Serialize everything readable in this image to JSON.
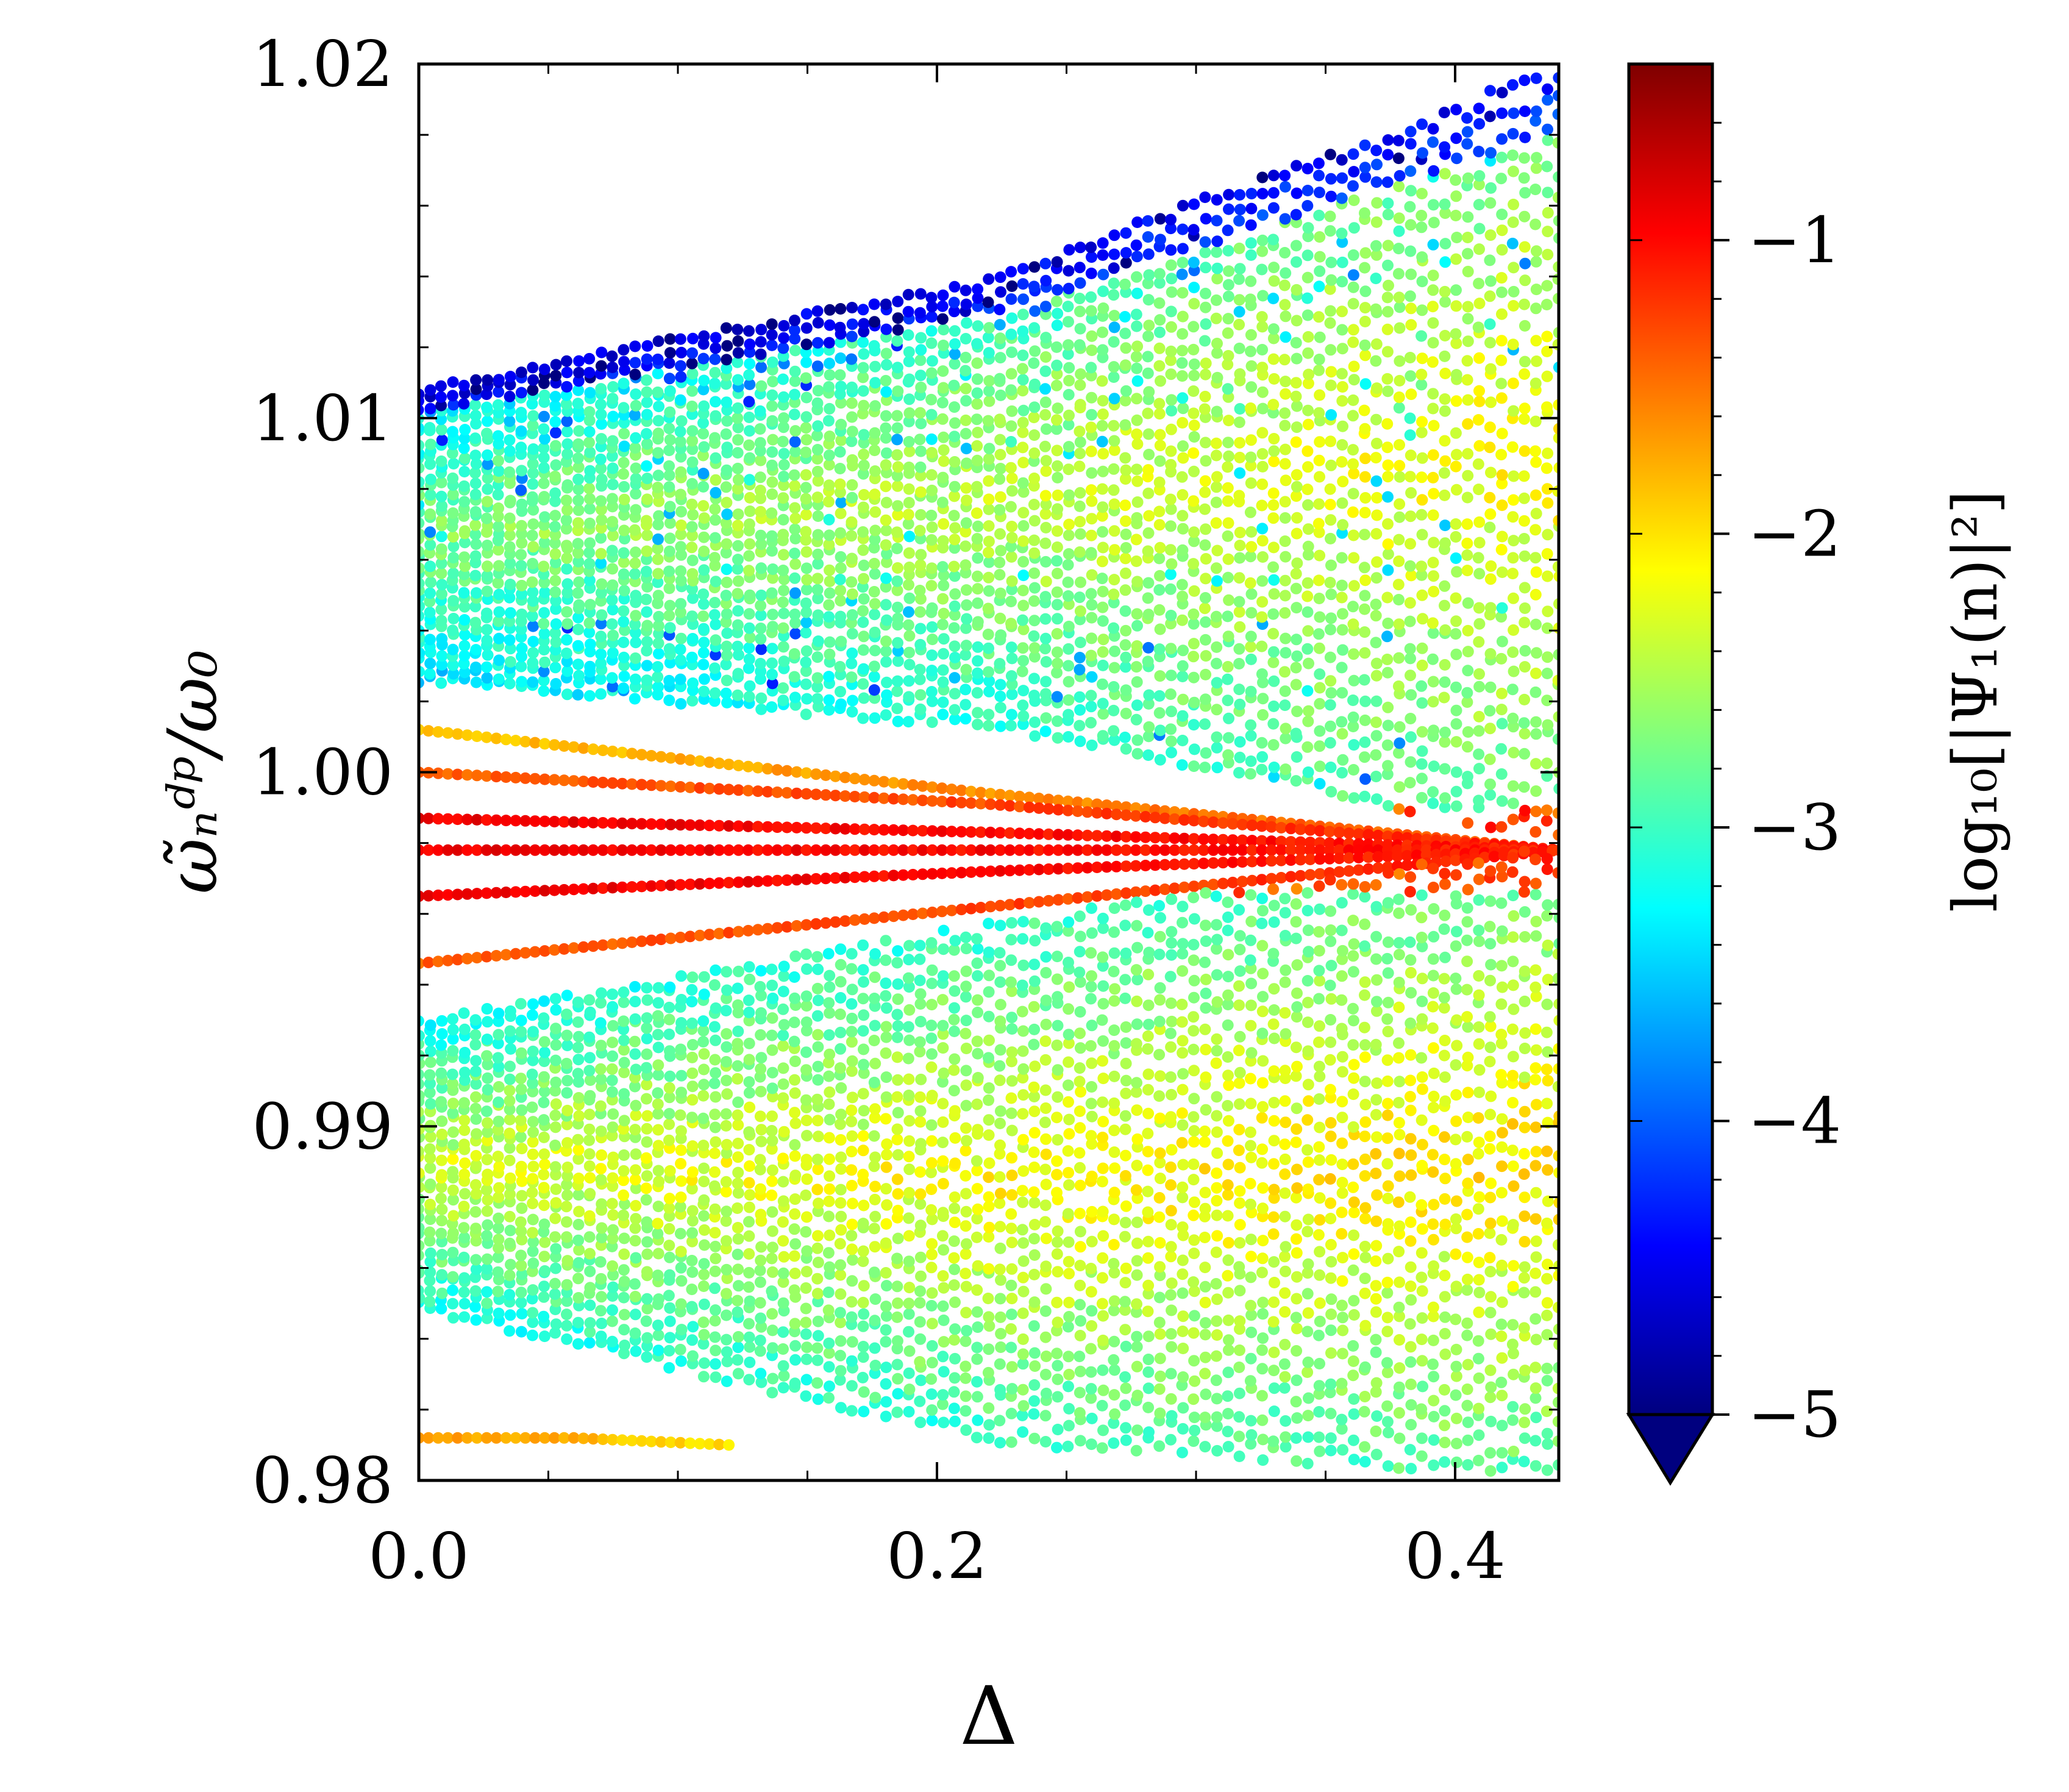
{
  "chart_data": {
    "type": "scatter",
    "title": "",
    "xlabel": "Δ",
    "ylabel": "ω̃ₙᵈᵖ/ω₀",
    "xlim": [
      0.0,
      0.44
    ],
    "ylim": [
      0.98,
      1.02
    ],
    "x_ticks": [
      "0.0",
      "0.2",
      "0.4"
    ],
    "x_tick_values": [
      0.0,
      0.2,
      0.4
    ],
    "y_ticks": [
      "0.98",
      "0.99",
      "1.00",
      "1.01",
      "1.02"
    ],
    "y_tick_values": [
      0.98,
      0.99,
      1.0,
      1.01,
      1.02
    ],
    "grid": false,
    "legend": "none",
    "colormap": "jet",
    "colormap_stops": [
      "#00007f",
      "#0000ff",
      "#007fff",
      "#00ffff",
      "#7fff7f",
      "#ffff00",
      "#ff7f00",
      "#ff0000",
      "#7f0000"
    ],
    "colorbar": {
      "label": "log₁₀[|Ψ₁(n)|²]",
      "range": [
        -5.0,
        -0.4
      ],
      "ticks": [
        "−5",
        "−4",
        "−3",
        "−2",
        "−1"
      ],
      "tick_values": [
        -5,
        -4,
        -3,
        -2,
        -1
      ],
      "extend": "min",
      "extend_color": "#00007f"
    },
    "series": [
      {
        "name": "",
        "kind": "isolated-mode",
        "x_range": [
          0.0,
          0.44
        ],
        "y": [
          1.0012,
          0.9994,
          0.9978
        ],
        "color_value": [
          -1.9,
          -1.6,
          -1.3
        ]
      },
      {
        "name": "",
        "kind": "isolated-mode",
        "x_range": [
          0.0,
          0.44
        ],
        "y": [
          1.0,
          0.9991,
          0.9978
        ],
        "color_value": [
          -1.4,
          -1.3,
          -1.1
        ]
      },
      {
        "name": "",
        "kind": "isolated-mode",
        "x_range": [
          0.0,
          0.44
        ],
        "y": [
          0.9987,
          0.9983,
          0.9978
        ],
        "color_value": [
          -0.9,
          -1.0,
          -1.1
        ]
      },
      {
        "name": "",
        "kind": "isolated-mode",
        "x_range": [
          0.0,
          0.44
        ],
        "y": [
          0.9978,
          0.9978,
          0.9978
        ],
        "color_value": [
          -0.9,
          -1.0,
          -1.1
        ]
      },
      {
        "name": "",
        "kind": "isolated-mode",
        "x_range": [
          0.0,
          0.44
        ],
        "y": [
          0.9965,
          0.9972,
          0.9978
        ],
        "color_value": [
          -0.9,
          -1.0,
          -1.1
        ]
      },
      {
        "name": "",
        "kind": "isolated-mode",
        "x_range": [
          0.0,
          0.44
        ],
        "y": [
          0.9946,
          0.9962,
          0.9978
        ],
        "color_value": [
          -1.4,
          -1.3,
          -1.1
        ]
      },
      {
        "name": "",
        "kind": "isolated-mode",
        "x_range": [
          0.0,
          0.12
        ],
        "y": [
          0.9812,
          0.9812,
          0.981
        ],
        "color_value": [
          -1.7,
          -1.8,
          -2.0
        ]
      },
      {
        "name": "",
        "kind": "upper-band",
        "x_range": [
          0.0,
          0.44
        ],
        "y_lower": [
          1.0025,
          1.0012,
          0.998
        ],
        "y_upper": [
          1.0109,
          1.014,
          1.02
        ],
        "edge_color_value": -4.7,
        "center_color_value": -2.7
      },
      {
        "name": "",
        "kind": "lower-band",
        "x_range": [
          0.0,
          0.44
        ],
        "y_lower": [
          0.9848,
          0.981,
          0.98
        ],
        "y_upper": [
          0.993,
          0.9958,
          0.998
        ],
        "edge_color_value": -3.6,
        "center_color_value": -2.3
      }
    ]
  }
}
